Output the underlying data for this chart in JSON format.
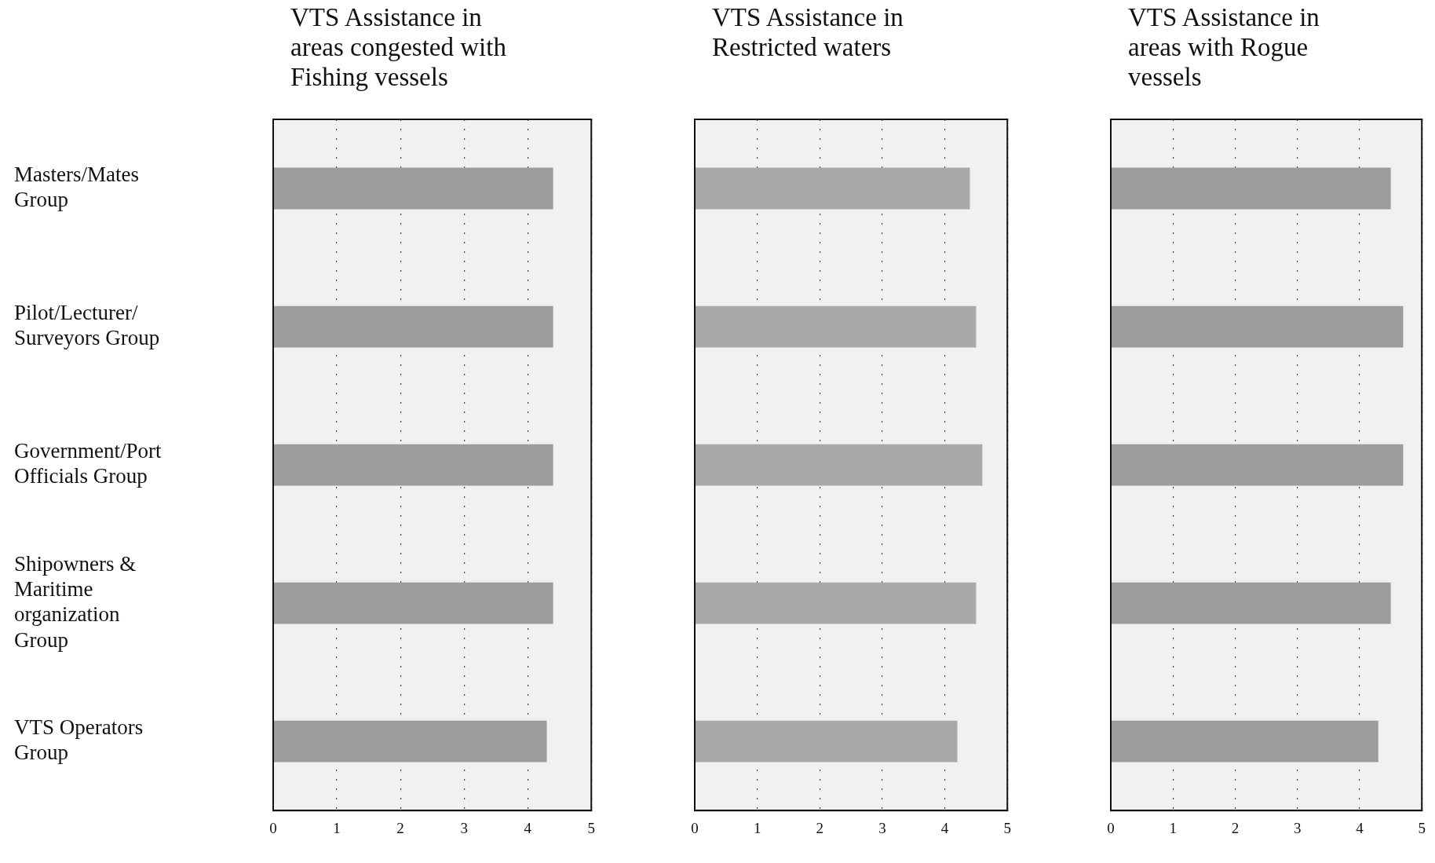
{
  "chart_data": [
    {
      "type": "bar",
      "orientation": "horizontal",
      "title": "VTS Assistance in\nareas congested with\nFishing vessels",
      "categories": [
        "Masters/Mates\nGroup",
        "Pilot/Lecturer/\nSurveyors Group",
        "Government/Port\nOfficials Group",
        "Shipowners &\nMaritime\norganization\nGroup",
        "VTS Operators\nGroup"
      ],
      "values": [
        4.4,
        4.4,
        4.4,
        4.4,
        4.3
      ],
      "color": "#9c9c9c",
      "xlim": [
        0,
        5
      ],
      "xticks": [
        0,
        1,
        2,
        3,
        4,
        5
      ],
      "grid": "x"
    },
    {
      "type": "bar",
      "orientation": "horizontal",
      "title": "VTS Assistance in\nRestricted waters",
      "categories": [
        null,
        null,
        null,
        null,
        null
      ],
      "values": [
        4.4,
        4.5,
        4.6,
        4.5,
        4.2
      ],
      "color": "#a8a8a8",
      "xlim": [
        0,
        5
      ],
      "xticks": [
        0,
        1,
        2,
        3,
        4,
        5
      ],
      "grid": "x",
      "tick_labels": "x"
    },
    {
      "type": "bar",
      "orientation": "horizontal",
      "title": "VTS Assistance in\nareas with Rogue\nvessels",
      "categories": [
        null,
        null,
        null,
        null,
        null
      ],
      "values": [
        4.5,
        4.7,
        4.7,
        4.5,
        4.3
      ],
      "color": "#9c9c9c",
      "xlim": [
        0,
        5
      ],
      "xticks": [
        0,
        1,
        2,
        3,
        4,
        5
      ],
      "grid": "x",
      "tick_labels": "x"
    }
  ]
}
